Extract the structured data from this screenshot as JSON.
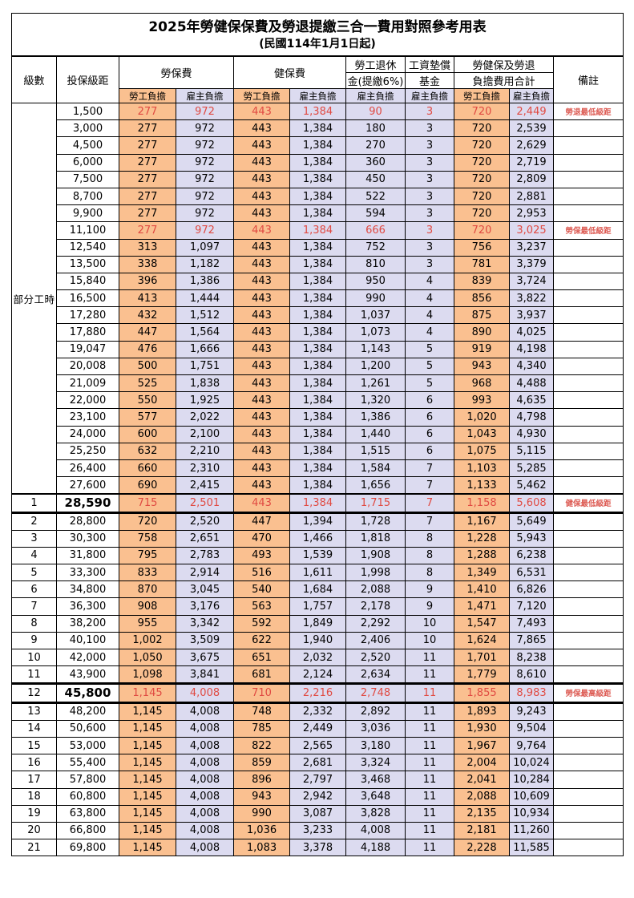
{
  "title": "2025年勞健保保費及勞退提繳三合一費用對照參考用表",
  "subtitle": "(民國114年1月1日起)",
  "header": {
    "level": "級數",
    "bracket": "投保級距",
    "labor_insurance": "勞保費",
    "health_insurance": "健保費",
    "pension_line1": "勞工退休",
    "pension_line2": "金(提繳6%)",
    "wage_fund_line1": "工資墊償",
    "wage_fund_line2": "基金",
    "total_line1": "勞健保及勞退",
    "total_line2": "負擔費用合計",
    "remark": "備註",
    "employee": "勞工負擔",
    "employer": "雇主負擔"
  },
  "part_time_label": "部分工時",
  "colors": {
    "employee_column_bg": "#fac090",
    "employer_column_bg": "#dcdbf0",
    "highlight_text": "#e04a42",
    "remark_text": "#dd5c54",
    "grid": "#000000"
  },
  "rows": [
    {
      "group": "part",
      "level": "",
      "bracket": "1,500",
      "values": [
        "277",
        "972",
        "443",
        "1,384",
        "90",
        "3",
        "720",
        "2,449"
      ],
      "remark": "勞退最低級距",
      "hl": true,
      "em": false
    },
    {
      "group": "part",
      "level": "",
      "bracket": "3,000",
      "values": [
        "277",
        "972",
        "443",
        "1,384",
        "180",
        "3",
        "720",
        "2,539"
      ],
      "remark": "",
      "hl": false,
      "em": false
    },
    {
      "group": "part",
      "level": "",
      "bracket": "4,500",
      "values": [
        "277",
        "972",
        "443",
        "1,384",
        "270",
        "3",
        "720",
        "2,629"
      ],
      "remark": "",
      "hl": false,
      "em": false
    },
    {
      "group": "part",
      "level": "",
      "bracket": "6,000",
      "values": [
        "277",
        "972",
        "443",
        "1,384",
        "360",
        "3",
        "720",
        "2,719"
      ],
      "remark": "",
      "hl": false,
      "em": false
    },
    {
      "group": "part",
      "level": "",
      "bracket": "7,500",
      "values": [
        "277",
        "972",
        "443",
        "1,384",
        "450",
        "3",
        "720",
        "2,809"
      ],
      "remark": "",
      "hl": false,
      "em": false
    },
    {
      "group": "part",
      "level": "",
      "bracket": "8,700",
      "values": [
        "277",
        "972",
        "443",
        "1,384",
        "522",
        "3",
        "720",
        "2,881"
      ],
      "remark": "",
      "hl": false,
      "em": false
    },
    {
      "group": "part",
      "level": "",
      "bracket": "9,900",
      "values": [
        "277",
        "972",
        "443",
        "1,384",
        "594",
        "3",
        "720",
        "2,953"
      ],
      "remark": "",
      "hl": false,
      "em": false
    },
    {
      "group": "part",
      "level": "",
      "bracket": "11,100",
      "values": [
        "277",
        "972",
        "443",
        "1,384",
        "666",
        "3",
        "720",
        "3,025"
      ],
      "remark": "勞保最低級距",
      "hl": true,
      "em": false
    },
    {
      "group": "part",
      "level": "",
      "bracket": "12,540",
      "values": [
        "313",
        "1,097",
        "443",
        "1,384",
        "752",
        "3",
        "756",
        "3,237"
      ],
      "remark": "",
      "hl": false,
      "em": false
    },
    {
      "group": "part",
      "level": "",
      "bracket": "13,500",
      "values": [
        "338",
        "1,182",
        "443",
        "1,384",
        "810",
        "3",
        "781",
        "3,379"
      ],
      "remark": "",
      "hl": false,
      "em": false
    },
    {
      "group": "part",
      "level": "",
      "bracket": "15,840",
      "values": [
        "396",
        "1,386",
        "443",
        "1,384",
        "950",
        "4",
        "839",
        "3,724"
      ],
      "remark": "",
      "hl": false,
      "em": false
    },
    {
      "group": "part",
      "level": "",
      "bracket": "16,500",
      "values": [
        "413",
        "1,444",
        "443",
        "1,384",
        "990",
        "4",
        "856",
        "3,822"
      ],
      "remark": "",
      "hl": false,
      "em": false
    },
    {
      "group": "part",
      "level": "",
      "bracket": "17,280",
      "values": [
        "432",
        "1,512",
        "443",
        "1,384",
        "1,037",
        "4",
        "875",
        "3,937"
      ],
      "remark": "",
      "hl": false,
      "em": false
    },
    {
      "group": "part",
      "level": "",
      "bracket": "17,880",
      "values": [
        "447",
        "1,564",
        "443",
        "1,384",
        "1,073",
        "4",
        "890",
        "4,025"
      ],
      "remark": "",
      "hl": false,
      "em": false
    },
    {
      "group": "part",
      "level": "",
      "bracket": "19,047",
      "values": [
        "476",
        "1,666",
        "443",
        "1,384",
        "1,143",
        "5",
        "919",
        "4,198"
      ],
      "remark": "",
      "hl": false,
      "em": false
    },
    {
      "group": "part",
      "level": "",
      "bracket": "20,008",
      "values": [
        "500",
        "1,751",
        "443",
        "1,384",
        "1,200",
        "5",
        "943",
        "4,340"
      ],
      "remark": "",
      "hl": false,
      "em": false
    },
    {
      "group": "part",
      "level": "",
      "bracket": "21,009",
      "values": [
        "525",
        "1,838",
        "443",
        "1,384",
        "1,261",
        "5",
        "968",
        "4,488"
      ],
      "remark": "",
      "hl": false,
      "em": false
    },
    {
      "group": "part",
      "level": "",
      "bracket": "22,000",
      "values": [
        "550",
        "1,925",
        "443",
        "1,384",
        "1,320",
        "6",
        "993",
        "4,635"
      ],
      "remark": "",
      "hl": false,
      "em": false
    },
    {
      "group": "part",
      "level": "",
      "bracket": "23,100",
      "values": [
        "577",
        "2,022",
        "443",
        "1,384",
        "1,386",
        "6",
        "1,020",
        "4,798"
      ],
      "remark": "",
      "hl": false,
      "em": false
    },
    {
      "group": "part",
      "level": "",
      "bracket": "24,000",
      "values": [
        "600",
        "2,100",
        "443",
        "1,384",
        "1,440",
        "6",
        "1,043",
        "4,930"
      ],
      "remark": "",
      "hl": false,
      "em": false
    },
    {
      "group": "part",
      "level": "",
      "bracket": "25,250",
      "values": [
        "632",
        "2,210",
        "443",
        "1,384",
        "1,515",
        "6",
        "1,075",
        "5,115"
      ],
      "remark": "",
      "hl": false,
      "em": false
    },
    {
      "group": "part",
      "level": "",
      "bracket": "26,400",
      "values": [
        "660",
        "2,310",
        "443",
        "1,384",
        "1,584",
        "7",
        "1,103",
        "5,285"
      ],
      "remark": "",
      "hl": false,
      "em": false
    },
    {
      "group": "part",
      "level": "",
      "bracket": "27,600",
      "values": [
        "690",
        "2,415",
        "443",
        "1,384",
        "1,656",
        "7",
        "1,133",
        "5,462"
      ],
      "remark": "",
      "hl": false,
      "em": false
    },
    {
      "group": "level",
      "level": "1",
      "bracket": "28,590",
      "values": [
        "715",
        "2,501",
        "443",
        "1,384",
        "1,715",
        "7",
        "1,158",
        "5,608"
      ],
      "remark": "健保最低級距",
      "hl": true,
      "em": true
    },
    {
      "group": "level",
      "level": "2",
      "bracket": "28,800",
      "values": [
        "720",
        "2,520",
        "447",
        "1,394",
        "1,728",
        "7",
        "1,167",
        "5,649"
      ],
      "remark": "",
      "hl": false,
      "em": false
    },
    {
      "group": "level",
      "level": "3",
      "bracket": "30,300",
      "values": [
        "758",
        "2,651",
        "470",
        "1,466",
        "1,818",
        "8",
        "1,228",
        "5,943"
      ],
      "remark": "",
      "hl": false,
      "em": false
    },
    {
      "group": "level",
      "level": "4",
      "bracket": "31,800",
      "values": [
        "795",
        "2,783",
        "493",
        "1,539",
        "1,908",
        "8",
        "1,288",
        "6,238"
      ],
      "remark": "",
      "hl": false,
      "em": false
    },
    {
      "group": "level",
      "level": "5",
      "bracket": "33,300",
      "values": [
        "833",
        "2,914",
        "516",
        "1,611",
        "1,998",
        "8",
        "1,349",
        "6,531"
      ],
      "remark": "",
      "hl": false,
      "em": false
    },
    {
      "group": "level",
      "level": "6",
      "bracket": "34,800",
      "values": [
        "870",
        "3,045",
        "540",
        "1,684",
        "2,088",
        "9",
        "1,410",
        "6,826"
      ],
      "remark": "",
      "hl": false,
      "em": false
    },
    {
      "group": "level",
      "level": "7",
      "bracket": "36,300",
      "values": [
        "908",
        "3,176",
        "563",
        "1,757",
        "2,178",
        "9",
        "1,471",
        "7,120"
      ],
      "remark": "",
      "hl": false,
      "em": false
    },
    {
      "group": "level",
      "level": "8",
      "bracket": "38,200",
      "values": [
        "955",
        "3,342",
        "592",
        "1,849",
        "2,292",
        "10",
        "1,547",
        "7,493"
      ],
      "remark": "",
      "hl": false,
      "em": false
    },
    {
      "group": "level",
      "level": "9",
      "bracket": "40,100",
      "values": [
        "1,002",
        "3,509",
        "622",
        "1,940",
        "2,406",
        "10",
        "1,624",
        "7,865"
      ],
      "remark": "",
      "hl": false,
      "em": false
    },
    {
      "group": "level",
      "level": "10",
      "bracket": "42,000",
      "values": [
        "1,050",
        "3,675",
        "651",
        "2,032",
        "2,520",
        "11",
        "1,701",
        "8,238"
      ],
      "remark": "",
      "hl": false,
      "em": false
    },
    {
      "group": "level",
      "level": "11",
      "bracket": "43,900",
      "values": [
        "1,098",
        "3,841",
        "681",
        "2,124",
        "2,634",
        "11",
        "1,779",
        "8,610"
      ],
      "remark": "",
      "hl": false,
      "em": false
    },
    {
      "group": "level",
      "level": "12",
      "bracket": "45,800",
      "values": [
        "1,145",
        "4,008",
        "710",
        "2,216",
        "2,748",
        "11",
        "1,855",
        "8,983"
      ],
      "remark": "勞保最高級距",
      "hl": true,
      "em": true
    },
    {
      "group": "level",
      "level": "13",
      "bracket": "48,200",
      "values": [
        "1,145",
        "4,008",
        "748",
        "2,332",
        "2,892",
        "11",
        "1,893",
        "9,243"
      ],
      "remark": "",
      "hl": false,
      "em": false
    },
    {
      "group": "level",
      "level": "14",
      "bracket": "50,600",
      "values": [
        "1,145",
        "4,008",
        "785",
        "2,449",
        "3,036",
        "11",
        "1,930",
        "9,504"
      ],
      "remark": "",
      "hl": false,
      "em": false
    },
    {
      "group": "level",
      "level": "15",
      "bracket": "53,000",
      "values": [
        "1,145",
        "4,008",
        "822",
        "2,565",
        "3,180",
        "11",
        "1,967",
        "9,764"
      ],
      "remark": "",
      "hl": false,
      "em": false
    },
    {
      "group": "level",
      "level": "16",
      "bracket": "55,400",
      "values": [
        "1,145",
        "4,008",
        "859",
        "2,681",
        "3,324",
        "11",
        "2,004",
        "10,024"
      ],
      "remark": "",
      "hl": false,
      "em": false
    },
    {
      "group": "level",
      "level": "17",
      "bracket": "57,800",
      "values": [
        "1,145",
        "4,008",
        "896",
        "2,797",
        "3,468",
        "11",
        "2,041",
        "10,284"
      ],
      "remark": "",
      "hl": false,
      "em": false
    },
    {
      "group": "level",
      "level": "18",
      "bracket": "60,800",
      "values": [
        "1,145",
        "4,008",
        "943",
        "2,942",
        "3,648",
        "11",
        "2,088",
        "10,609"
      ],
      "remark": "",
      "hl": false,
      "em": false
    },
    {
      "group": "level",
      "level": "19",
      "bracket": "63,800",
      "values": [
        "1,145",
        "4,008",
        "990",
        "3,087",
        "3,828",
        "11",
        "2,135",
        "10,934"
      ],
      "remark": "",
      "hl": false,
      "em": false
    },
    {
      "group": "level",
      "level": "20",
      "bracket": "66,800",
      "values": [
        "1,145",
        "4,008",
        "1,036",
        "3,233",
        "4,008",
        "11",
        "2,181",
        "11,260"
      ],
      "remark": "",
      "hl": false,
      "em": false
    },
    {
      "group": "level",
      "level": "21",
      "bracket": "69,800",
      "values": [
        "1,145",
        "4,008",
        "1,083",
        "3,378",
        "4,188",
        "11",
        "2,228",
        "11,585"
      ],
      "remark": "",
      "hl": false,
      "em": false
    }
  ]
}
